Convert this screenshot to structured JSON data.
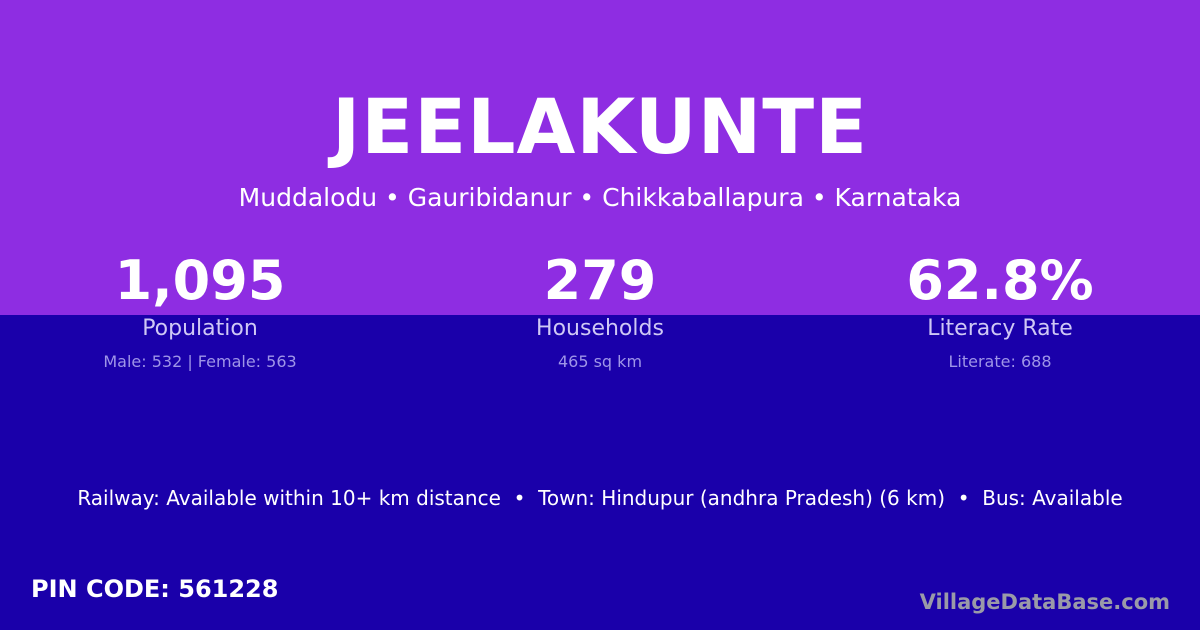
{
  "colors": {
    "top_bg": "#8e2de2",
    "bottom_bg": "#1a00aa"
  },
  "village": "JEELAKUNTE",
  "location": "Muddalodu • Gauribidanur • Chikkaballapura • Karnataka",
  "stats": [
    {
      "value": "1,095",
      "label": "Population",
      "detail": "Male: 532 | Female: 563"
    },
    {
      "value": "279",
      "label": "Households",
      "detail": "465 sq km"
    },
    {
      "value": "62.8%",
      "label": "Literacy Rate",
      "detail": "Literate: 688"
    }
  ],
  "connectivity": "Railway: Available within 10+ km distance  •  Town: Hindupur (andhra Pradesh) (6 km)  •  Bus: Available",
  "pin_code": "PIN CODE: 561228",
  "brand": "VillageDataBase.com"
}
